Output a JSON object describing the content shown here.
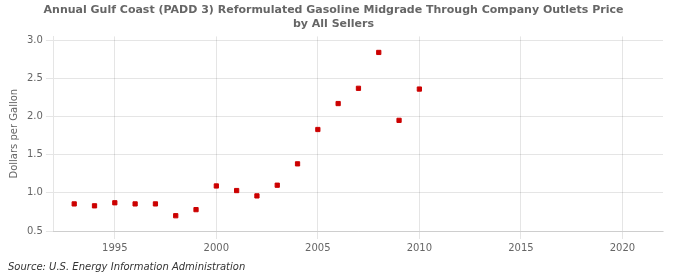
{
  "chart_data": {
    "type": "scatter",
    "title": "Annual Gulf Coast (PADD 3) Reformulated Gasoline Midgrade Through Company Outlets Price\nby All Sellers",
    "ylabel": "Dollars per Gallon",
    "annotations": [
      "Source: U.S. Energy Information Administration"
    ],
    "x": [
      1993,
      1994,
      1995,
      1996,
      1997,
      1998,
      1999,
      2000,
      2001,
      2002,
      2003,
      2004,
      2005,
      2006,
      2007,
      2008,
      2009,
      2010
    ],
    "values": [
      0.855,
      0.83,
      0.87,
      0.855,
      0.855,
      0.7,
      0.78,
      1.09,
      1.03,
      0.96,
      1.1,
      1.38,
      1.83,
      2.17,
      2.37,
      2.84,
      1.95,
      2.36
    ],
    "color": "#cc0000",
    "marker": "square",
    "xlim": [
      1992,
      2022
    ],
    "ylim": [
      0.5,
      3.05
    ],
    "xticks": [
      1995,
      2000,
      2005,
      2010,
      2015,
      2020
    ],
    "yticks": [
      0.5,
      {
        "value": 1.0,
        "label": "1.0"
      },
      1.5,
      {
        "value": 2.0,
        "label": "2.0"
      },
      2.5,
      {
        "value": 3.0,
        "label": "3.0"
      }
    ],
    "grid": true
  }
}
